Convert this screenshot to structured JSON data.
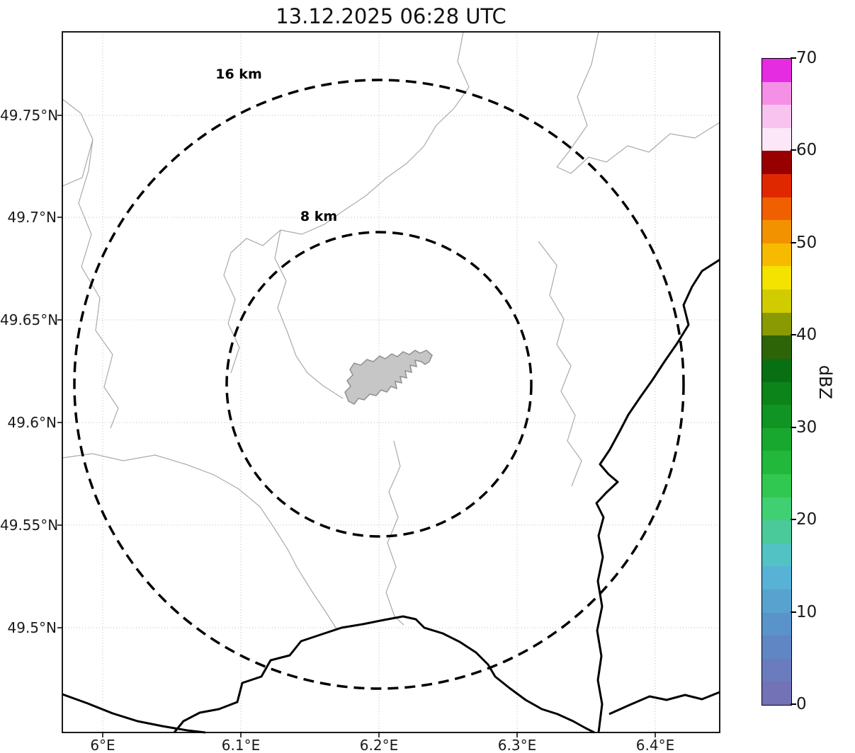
{
  "title": "13.12.2025 06:28 UTC",
  "map": {
    "x_ticks": [
      "6°E",
      "6.1°E",
      "6.2°E",
      "6.3°E",
      "6.4°E"
    ],
    "y_ticks": [
      "49.75°N",
      "49.7°N",
      "49.65°N",
      "49.6°N",
      "49.55°N",
      "49.5°N"
    ],
    "range_rings": [
      {
        "label": "16 km"
      },
      {
        "label": "8 km"
      }
    ]
  },
  "colorbar": {
    "label": "dBZ",
    "tick_labels_top_to_bottom": [
      "70",
      "60",
      "50",
      "40",
      "30",
      "20",
      "10",
      "0"
    ],
    "value_min": 0,
    "value_max": 70,
    "colors_bottom_to_top": [
      "#7472b6",
      "#6a7cbe",
      "#6186c4",
      "#5a92ca",
      "#58a2d0",
      "#58b2d6",
      "#52c2c4",
      "#4aca9a",
      "#40d072",
      "#30c850",
      "#22b83c",
      "#18a830",
      "#109424",
      "#0c841a",
      "#087012",
      "#2e6408",
      "#8a9a02",
      "#d0cc00",
      "#f4e200",
      "#f6ba00",
      "#f39200",
      "#f06000",
      "#e02800",
      "#980000",
      "#fbe7f7",
      "#f8c3ef",
      "#f590e7",
      "#e52ce0"
    ]
  },
  "colors": {
    "range_ring": "#000000",
    "national_border": "#000000",
    "admin_boundary": "#aaaaaa",
    "airport_fill": "#c6c6c6",
    "airport_edge": "#8f8f8f",
    "grid": "#bcbcbc",
    "frame": "#000000"
  }
}
